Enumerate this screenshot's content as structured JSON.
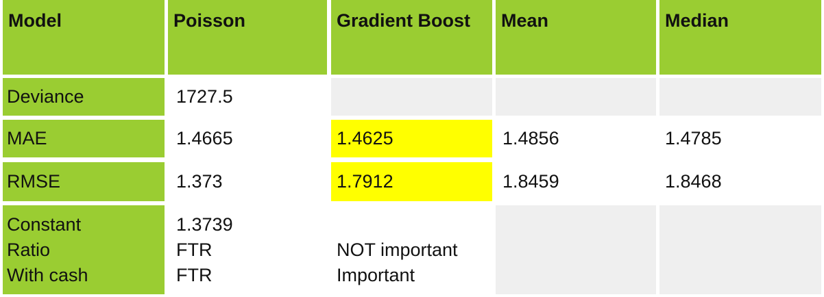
{
  "header": {
    "model": "Model",
    "poisson": "Poisson",
    "gradient_boost": "Gradient Boost",
    "mean": "Mean",
    "median": "Median"
  },
  "rows": {
    "deviance": {
      "label": "Deviance",
      "poisson": "1727.5"
    },
    "mae": {
      "label": "MAE",
      "poisson": "1.4665",
      "gradient_boost": "1.4625",
      "mean": "1.4856",
      "median": "1.4785"
    },
    "rmse": {
      "label": "RMSE",
      "poisson": "1.373",
      "gradient_boost": "1.7912",
      "mean": "1.8459",
      "median": "1.8468"
    },
    "features": {
      "labels": [
        "Constant",
        "Ratio",
        "With cash"
      ],
      "poisson": [
        "1.3739",
        "FTR",
        "FTR"
      ],
      "gradient_boost": [
        "",
        "NOT important",
        "Important"
      ]
    }
  },
  "colors": {
    "header_bg": "#9acd32",
    "label_bg": "#9acd32",
    "empty_bg": "#efefef",
    "highlight_bg": "#ffff00"
  }
}
